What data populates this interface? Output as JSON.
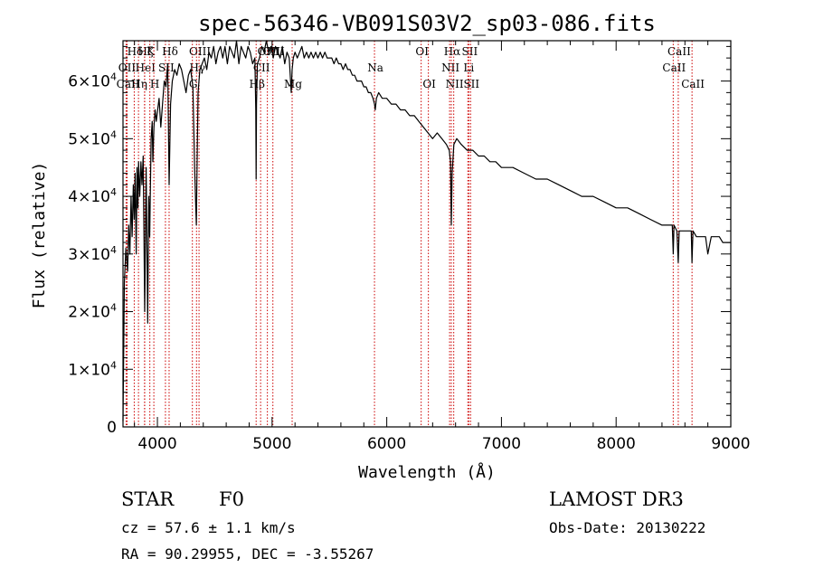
{
  "chart_data": {
    "type": "line",
    "title": "spec-56346-VB091S03V2_sp03-086.fits",
    "xlabel": "Wavelength (Å)",
    "ylabel": "Flux (relative)",
    "xlim": [
      3700,
      9000
    ],
    "ylim": [
      0,
      67000
    ],
    "x_ticks": [
      4000,
      5000,
      6000,
      7000,
      8000,
      9000
    ],
    "y_ticks": [
      {
        "value": 0,
        "label": "0"
      },
      {
        "value": 10000,
        "mantissa": "1×10",
        "exp": "4"
      },
      {
        "value": 20000,
        "mantissa": "2×10",
        "exp": "4"
      },
      {
        "value": 30000,
        "mantissa": "3×10",
        "exp": "4"
      },
      {
        "value": 40000,
        "mantissa": "4×10",
        "exp": "4"
      },
      {
        "value": 50000,
        "mantissa": "5×10",
        "exp": "4"
      },
      {
        "value": 60000,
        "mantissa": "6×10",
        "exp": "4"
      }
    ],
    "series": [
      {
        "name": "flux",
        "x": [
          3700,
          3712,
          3725,
          3740,
          3750,
          3760,
          3770,
          3780,
          3790,
          3798,
          3806,
          3815,
          3822,
          3830,
          3836,
          3846,
          3856,
          3866,
          3876,
          3889,
          3902,
          3915,
          3925,
          3933,
          3945,
          3955,
          3960,
          3970,
          3980,
          3990,
          4002,
          4015,
          4030,
          4045,
          4060,
          4075,
          4090,
          4102,
          4115,
          4130,
          4150,
          4170,
          4190,
          4210,
          4230,
          4250,
          4270,
          4290,
          4310,
          4325,
          4335,
          4340,
          4345,
          4355,
          4370,
          4390,
          4410,
          4430,
          4450,
          4470,
          4490,
          4510,
          4530,
          4550,
          4570,
          4590,
          4610,
          4630,
          4650,
          4670,
          4690,
          4710,
          4730,
          4750,
          4770,
          4790,
          4810,
          4830,
          4850,
          4858,
          4861,
          4864,
          4872,
          4890,
          4910,
          4930,
          4950,
          4970,
          4990,
          5010,
          5030,
          5050,
          5070,
          5090,
          5110,
          5130,
          5150,
          5167,
          5175,
          5185,
          5200,
          5220,
          5240,
          5260,
          5280,
          5300,
          5320,
          5340,
          5360,
          5380,
          5400,
          5420,
          5440,
          5460,
          5480,
          5500,
          5520,
          5540,
          5560,
          5580,
          5600,
          5620,
          5640,
          5660,
          5680,
          5700,
          5720,
          5740,
          5760,
          5780,
          5800,
          5820,
          5840,
          5860,
          5880,
          5893,
          5900,
          5910,
          5930,
          5960,
          6000,
          6040,
          6080,
          6120,
          6160,
          6200,
          6240,
          6280,
          6320,
          6360,
          6400,
          6440,
          6480,
          6520,
          6545,
          6556,
          6563,
          6570,
          6585,
          6610,
          6650,
          6700,
          6750,
          6800,
          6850,
          6900,
          6950,
          7000,
          7100,
          7200,
          7300,
          7400,
          7500,
          7600,
          7700,
          7800,
          7900,
          8000,
          8100,
          8200,
          8300,
          8400,
          8450,
          8490,
          8498,
          8505,
          8530,
          8542,
          8550,
          8580,
          8620,
          8655,
          8662,
          8670,
          8700,
          8740,
          8780,
          8800,
          8830,
          8860,
          8900,
          8930,
          8960,
          8980,
          9000
        ],
        "y": [
          1000,
          25000,
          31000,
          27000,
          35000,
          30000,
          40000,
          33000,
          42000,
          36000,
          44000,
          30000,
          45000,
          38000,
          46000,
          40000,
          46000,
          42000,
          47000,
          20000,
          45000,
          18000,
          40000,
          33000,
          50000,
          53000,
          46000,
          52000,
          55000,
          53000,
          55000,
          57000,
          52000,
          56000,
          60000,
          59000,
          63000,
          42000,
          56000,
          60000,
          62000,
          61000,
          63000,
          62000,
          60000,
          58000,
          61000,
          62000,
          59000,
          45000,
          38000,
          35000,
          44000,
          58000,
          62000,
          63000,
          64000,
          62000,
          65000,
          64000,
          66000,
          63000,
          65000,
          66000,
          64000,
          66000,
          63000,
          66000,
          65000,
          64000,
          67000,
          63000,
          66000,
          65000,
          64000,
          66000,
          65000,
          63000,
          64000,
          55000,
          43000,
          56000,
          63000,
          64000,
          66000,
          65000,
          67000,
          65000,
          66000,
          64000,
          66000,
          65000,
          64000,
          66000,
          63000,
          65000,
          64000,
          58000,
          62000,
          64000,
          65000,
          64000,
          65000,
          66000,
          64000,
          65000,
          64000,
          65000,
          64000,
          65000,
          64000,
          65000,
          64000,
          65000,
          64000,
          64000,
          64000,
          63000,
          64000,
          63000,
          63000,
          62000,
          63000,
          62000,
          62000,
          61000,
          61000,
          60000,
          60000,
          60000,
          59000,
          59000,
          58000,
          58000,
          57000,
          56000,
          55000,
          57000,
          58000,
          57000,
          57000,
          56000,
          56000,
          55000,
          55000,
          54000,
          54000,
          53000,
          52000,
          51000,
          50000,
          51000,
          50000,
          49000,
          48000,
          46000,
          35000,
          44000,
          49000,
          50000,
          49000,
          48000,
          48000,
          47000,
          47000,
          46000,
          46000,
          45000,
          45000,
          44000,
          43000,
          43000,
          42000,
          41000,
          40000,
          40000,
          39000,
          38000,
          38000,
          37000,
          36000,
          35000,
          35000,
          35000,
          30000,
          35000,
          34000,
          28500,
          34000,
          34000,
          34000,
          34000,
          28500,
          34000,
          33000,
          33000,
          33000,
          30000,
          33000,
          33000,
          33000,
          32000,
          32000,
          32000,
          32000
        ]
      }
    ],
    "line_marks": [
      {
        "label": "Hδ",
        "x": 3798,
        "row": 0
      },
      {
        "label": "OII",
        "x": 3727,
        "row": 1
      },
      {
        "label": "CaII",
        "x": 3736,
        "row": 2
      },
      {
        "label": "Hζ",
        "x": 3889,
        "row": 0
      },
      {
        "label": "HeI",
        "x": 3888,
        "row": 1
      },
      {
        "label": "Hη",
        "x": 3835,
        "row": 2
      },
      {
        "label": "K",
        "x": 3934,
        "row": 0
      },
      {
        "label": "SII",
        "x": 4070,
        "row": 1
      },
      {
        "label": "H",
        "x": 3969,
        "row": 2
      },
      {
        "label": "Hδ",
        "x": 4102,
        "row": 0
      },
      {
        "label": "OIII",
        "x": 4363,
        "row": 0
      },
      {
        "label": "Hγ",
        "x": 4341,
        "row": 1
      },
      {
        "label": "G",
        "x": 4305,
        "row": 2
      },
      {
        "label": "Hβ",
        "x": 4861,
        "row": 2
      },
      {
        "label": "OIII",
        "x": 4959,
        "row": 0
      },
      {
        "label": "OIII",
        "x": 5007,
        "row": 0
      },
      {
        "label": "CII",
        "x": 4900,
        "row": 1
      },
      {
        "label": "Mg",
        "x": 5175,
        "row": 2
      },
      {
        "label": "Na",
        "x": 5893,
        "row": 1
      },
      {
        "label": "OI",
        "x": 6300,
        "row": 0
      },
      {
        "label": "OI",
        "x": 6363,
        "row": 2
      },
      {
        "label": "Hα",
        "x": 6563,
        "row": 0
      },
      {
        "label": "SII",
        "x": 6716,
        "row": 0
      },
      {
        "label": "NII",
        "x": 6548,
        "row": 1
      },
      {
        "label": "Li",
        "x": 6707,
        "row": 1
      },
      {
        "label": "NII",
        "x": 6584,
        "row": 2
      },
      {
        "label": "SII",
        "x": 6731,
        "row": 2
      },
      {
        "label": "CaII",
        "x": 8542,
        "row": 0
      },
      {
        "label": "CaII",
        "x": 8498,
        "row": 1
      },
      {
        "label": "CaII",
        "x": 8662,
        "row": 2
      }
    ]
  },
  "info": {
    "object_class": "STAR",
    "subclass": "F0",
    "survey": "LAMOST DR3",
    "redshift_line": "cz = 57.6 ± 1.1 km/s",
    "obs_date": "Obs-Date: 20130222",
    "coords": "RA =  90.29955, DEC =  -3.55267"
  },
  "colors": {
    "spectrum": "#000000",
    "line_marker": "#cc0000",
    "axis": "#000000"
  }
}
